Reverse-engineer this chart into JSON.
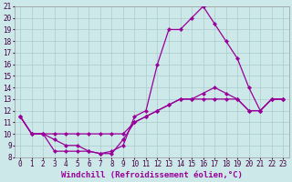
{
  "xlabel": "Windchill (Refroidissement éolien,°C)",
  "background_color": "#cce8e8",
  "grid_color": "#aacccc",
  "line_color": "#990099",
  "xlim": [
    -0.5,
    23.5
  ],
  "ylim": [
    8,
    21
  ],
  "xticks": [
    0,
    1,
    2,
    3,
    4,
    5,
    6,
    7,
    8,
    9,
    10,
    11,
    12,
    13,
    14,
    15,
    16,
    17,
    18,
    19,
    20,
    21,
    22,
    23
  ],
  "yticks": [
    8,
    9,
    10,
    11,
    12,
    13,
    14,
    15,
    16,
    17,
    18,
    19,
    20,
    21
  ],
  "line1_x": [
    0,
    1,
    2,
    3,
    4,
    5,
    6,
    7,
    8,
    9,
    10,
    11,
    12,
    13,
    14,
    15,
    16,
    17,
    18,
    19,
    20,
    21,
    22,
    23
  ],
  "line1_y": [
    11.5,
    10.0,
    10.0,
    8.5,
    8.5,
    8.5,
    8.5,
    8.3,
    8.3,
    9.5,
    11.0,
    11.5,
    12.0,
    12.5,
    13.0,
    13.0,
    13.0,
    13.0,
    13.0,
    13.0,
    12.0,
    12.0,
    13.0,
    13.0
  ],
  "line2_x": [
    0,
    1,
    2,
    3,
    4,
    5,
    6,
    7,
    8,
    9,
    10,
    11,
    12,
    13,
    14,
    15,
    16,
    17,
    18,
    19,
    20,
    21,
    22,
    23
  ],
  "line2_y": [
    11.5,
    10.0,
    10.0,
    10.0,
    10.0,
    10.0,
    10.0,
    10.0,
    10.0,
    10.0,
    11.0,
    11.5,
    12.0,
    12.5,
    13.0,
    13.0,
    13.5,
    14.0,
    13.5,
    13.0,
    12.0,
    12.0,
    13.0,
    13.0
  ],
  "line3_x": [
    0,
    1,
    2,
    3,
    4,
    5,
    6,
    7,
    8,
    9,
    10,
    11,
    12,
    13,
    14,
    15,
    16,
    17,
    18,
    19,
    20,
    21,
    22,
    23
  ],
  "line3_y": [
    11.5,
    10.0,
    10.0,
    9.5,
    9.0,
    9.0,
    8.5,
    8.3,
    8.5,
    9.0,
    11.5,
    12.0,
    16.0,
    19.0,
    19.0,
    20.0,
    21.0,
    19.5,
    18.0,
    16.5,
    14.0,
    12.0,
    13.0,
    13.0
  ],
  "tick_fontsize": 5.5,
  "label_fontsize": 6.5
}
